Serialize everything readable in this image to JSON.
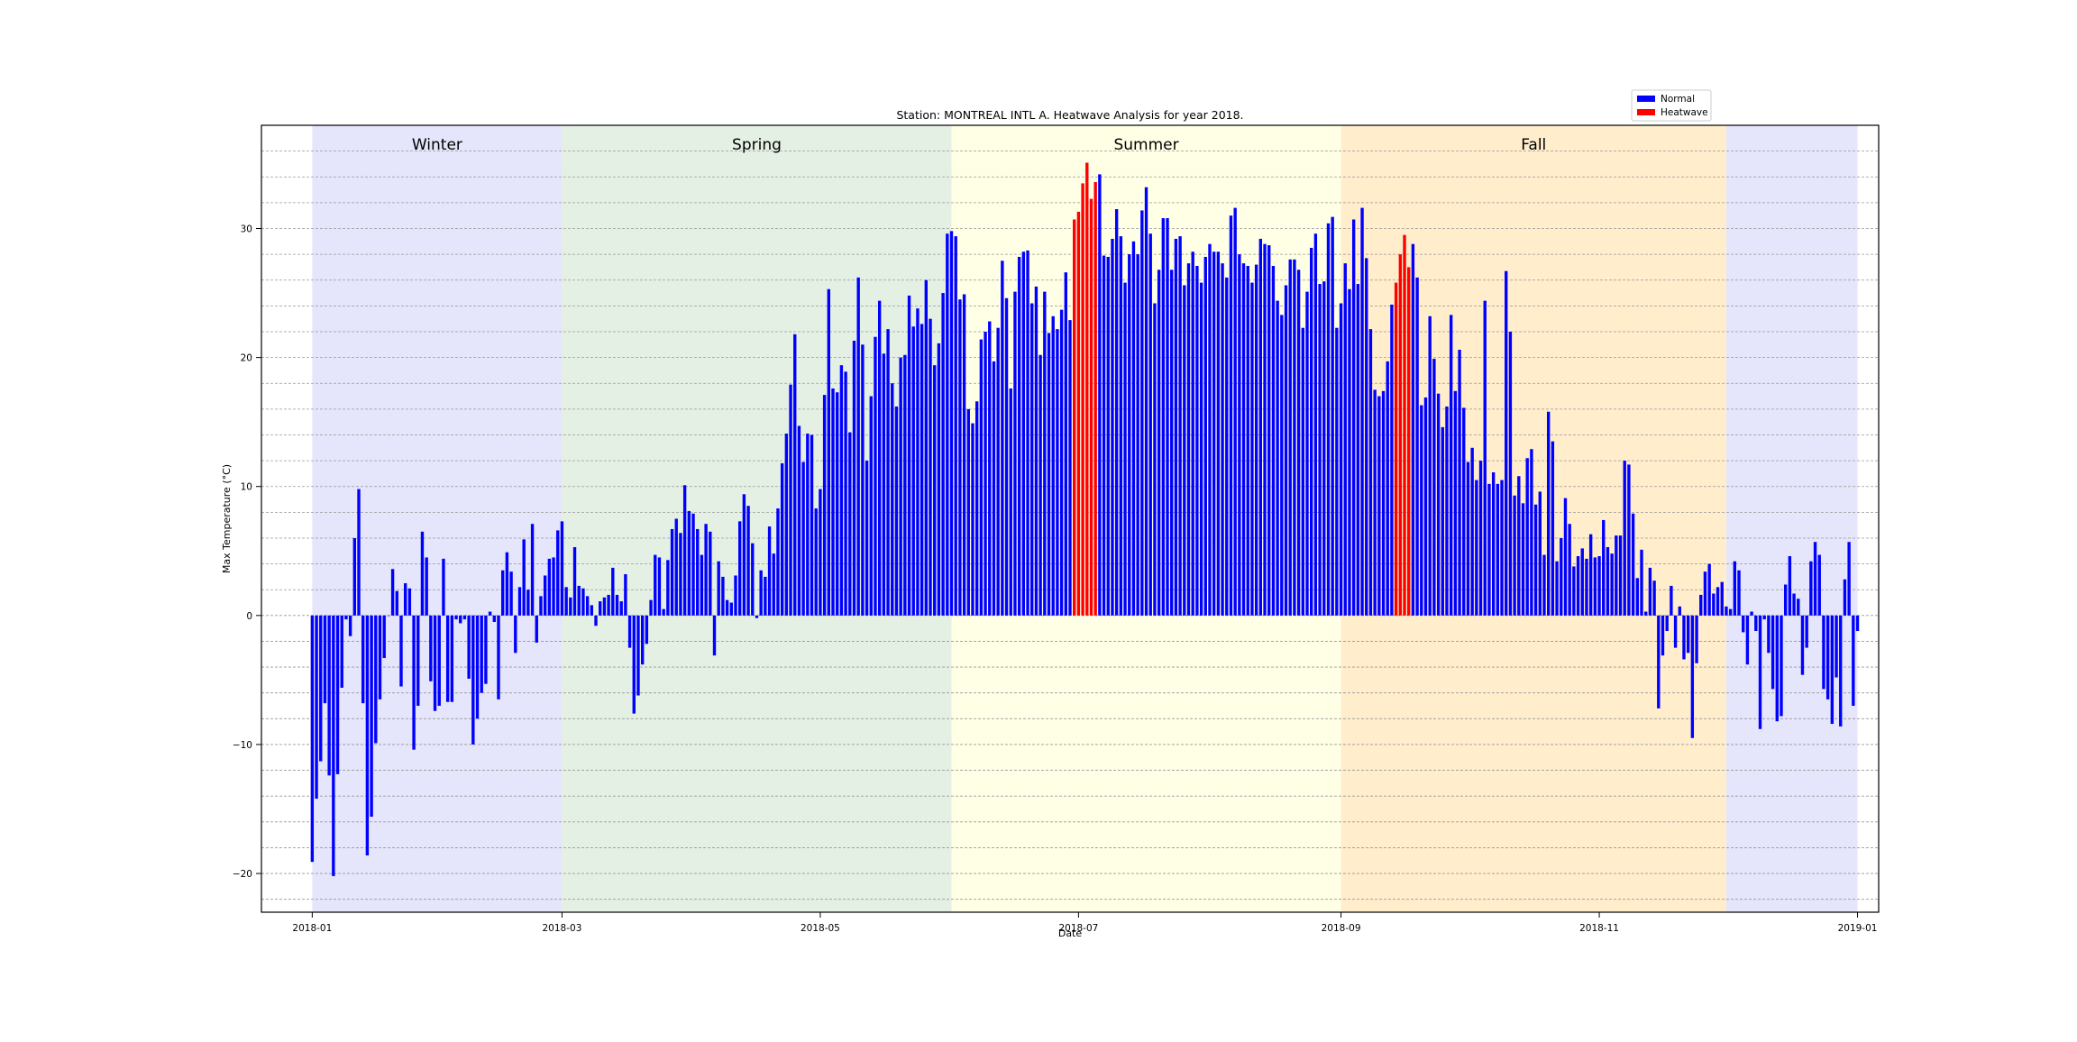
{
  "chart_data": {
    "type": "bar",
    "title": "Station: MONTREAL INTL A. Heatwave Analysis for year 2018.",
    "xlabel": "Date",
    "ylabel": "Max Temperature (°C)",
    "ylim": [
      -23,
      38
    ],
    "xlim": [
      "2017-12-20",
      "2019-01-06"
    ],
    "grid": "horizontal dashed, every 2 units",
    "legend_placement": "top-right, above plot",
    "x_ticks": [
      "2018-01",
      "2018-03",
      "2018-05",
      "2018-07",
      "2018-09",
      "2018-11",
      "2019-01"
    ],
    "y_ticks": [
      -20,
      -10,
      0,
      10,
      20,
      30
    ],
    "seasons": [
      {
        "label": "Winter",
        "start": "2018-01-01",
        "end": "2018-03-01",
        "color": "#e5e5fb"
      },
      {
        "label": "Spring",
        "start": "2018-03-01",
        "end": "2018-06-01",
        "color": "#e5f0e5"
      },
      {
        "label": "Summer",
        "start": "2018-06-01",
        "end": "2018-09-01",
        "color": "#ffffe5"
      },
      {
        "label": "Fall",
        "start": "2018-09-01",
        "end": "2018-12-01",
        "color": "#ffedcc"
      },
      {
        "label": "",
        "start": "2018-12-01",
        "end": "2019-01-01",
        "color": "#e5e5fb"
      }
    ],
    "series": [
      {
        "name": "Normal",
        "color": "#0000ff"
      },
      {
        "name": "Heatwave",
        "color": "#ff0000"
      }
    ],
    "heatwave_ranges": [
      [
        "2018-06-30",
        "2018-07-05"
      ],
      [
        "2018-09-14",
        "2018-09-17"
      ]
    ],
    "start_date": "2018-01-01",
    "values": [
      -19.1,
      -14.2,
      -11.3,
      -6.8,
      -12.4,
      -20.2,
      -12.3,
      -5.6,
      -0.3,
      -1.6,
      6.0,
      9.8,
      -6.8,
      -18.6,
      -15.6,
      -9.9,
      -6.5,
      -3.3,
      0.0,
      3.6,
      1.9,
      -5.5,
      2.5,
      2.1,
      -10.4,
      -7.0,
      6.5,
      4.5,
      -5.1,
      -7.4,
      -7.0,
      4.4,
      -6.7,
      -6.7,
      -0.3,
      -0.6,
      -0.3,
      -4.9,
      -10.0,
      -8.0,
      -6.0,
      -5.3,
      0.3,
      -0.5,
      -6.5,
      3.5,
      4.9,
      3.4,
      -2.9,
      2.2,
      5.9,
      2.0,
      7.1,
      -2.1,
      1.5,
      3.1,
      4.4,
      4.5,
      6.6,
      7.3,
      2.2,
      1.4,
      5.3,
      2.3,
      2.1,
      1.5,
      0.8,
      -0.8,
      1.1,
      1.4,
      1.6,
      3.7,
      1.6,
      1.1,
      3.2,
      -2.5,
      -7.6,
      -6.2,
      -3.8,
      -2.2,
      1.2,
      4.7,
      4.5,
      0.5,
      4.3,
      6.7,
      7.5,
      6.4,
      10.1,
      8.1,
      7.9,
      6.7,
      4.7,
      7.1,
      6.5,
      -3.1,
      4.2,
      3.0,
      1.2,
      1.0,
      3.1,
      7.3,
      9.4,
      8.5,
      5.6,
      -0.2,
      3.5,
      3.0,
      6.9,
      4.8,
      8.3,
      11.8,
      14.1,
      17.9,
      21.8,
      14.7,
      11.9,
      14.1,
      14.0,
      8.3,
      9.8,
      17.1,
      25.3,
      17.6,
      17.3,
      19.4,
      18.9,
      14.2,
      21.3,
      26.2,
      21.0,
      12.0,
      17.0,
      21.6,
      24.4,
      20.3,
      22.2,
      18.0,
      16.2,
      20.0,
      20.2,
      24.8,
      22.4,
      23.8,
      22.6,
      26.0,
      23.0,
      19.4,
      21.1,
      25.0,
      29.6,
      29.8,
      29.4,
      24.5,
      24.9,
      16.0,
      14.9,
      16.6,
      21.4,
      22.0,
      22.8,
      19.7,
      22.3,
      27.5,
      24.6,
      17.6,
      25.1,
      27.8,
      28.2,
      28.3,
      24.2,
      25.5,
      20.2,
      25.1,
      21.9,
      23.2,
      22.2,
      23.7,
      26.6,
      22.9,
      30.7,
      31.3,
      33.5,
      35.1,
      32.3,
      33.6,
      34.2,
      27.9,
      27.8,
      29.2,
      31.5,
      29.4,
      25.8,
      28.0,
      29.0,
      28.0,
      31.4,
      33.2,
      29.6,
      24.2,
      26.8,
      30.8,
      30.8,
      26.8,
      29.2,
      29.4,
      25.6,
      27.3,
      28.2,
      27.1,
      25.8,
      27.8,
      28.8,
      28.2,
      28.2,
      27.3,
      26.2,
      31.0,
      31.6,
      28.0,
      27.3,
      27.1,
      25.8,
      27.2,
      29.2,
      28.8,
      28.7,
      27.1,
      24.4,
      23.3,
      25.6,
      27.6,
      27.6,
      26.8,
      22.3,
      25.1,
      28.5,
      29.6,
      25.7,
      25.9,
      30.4,
      30.9,
      22.3,
      24.2,
      27.3,
      25.3,
      30.7,
      25.7,
      31.6,
      27.7,
      22.2,
      17.5,
      17.0,
      17.4,
      19.7,
      24.1,
      25.8,
      28.0,
      29.5,
      27.0,
      28.8,
      26.2,
      16.3,
      16.9,
      23.2,
      19.9,
      17.2,
      14.6,
      16.2,
      23.3,
      17.4,
      20.6,
      16.1,
      11.9,
      13.0,
      10.5,
      12.0,
      24.4,
      10.2,
      11.1,
      10.2,
      10.5,
      26.7,
      22.0,
      9.3,
      10.8,
      8.7,
      12.2,
      12.9,
      8.6,
      9.6,
      4.7,
      15.8,
      13.5,
      4.2,
      6.0,
      9.1,
      7.1,
      3.8,
      4.6,
      5.2,
      4.4,
      6.3,
      4.5,
      4.6,
      7.4,
      5.3,
      4.8,
      6.2,
      6.2,
      12.0,
      11.7,
      7.9,
      2.9,
      5.1,
      0.3,
      3.7,
      2.7,
      -7.2,
      -3.1,
      -1.2,
      2.3,
      -2.5,
      0.7,
      -3.4,
      -2.9,
      -9.5,
      -3.7,
      1.6,
      3.4,
      4.0,
      1.7,
      2.2,
      2.6,
      0.7,
      0.5,
      4.2,
      3.5,
      -1.3,
      -3.8,
      0.3,
      -1.2,
      -8.8,
      -0.3,
      -2.9,
      -5.7,
      -8.2,
      -7.8,
      2.4,
      4.6,
      1.7,
      1.3,
      -4.6,
      -2.5,
      4.2,
      5.7,
      4.7,
      -5.7,
      -6.5,
      -8.4,
      -4.8,
      -8.6,
      2.8,
      5.7,
      -7.0,
      -1.2
    ]
  }
}
